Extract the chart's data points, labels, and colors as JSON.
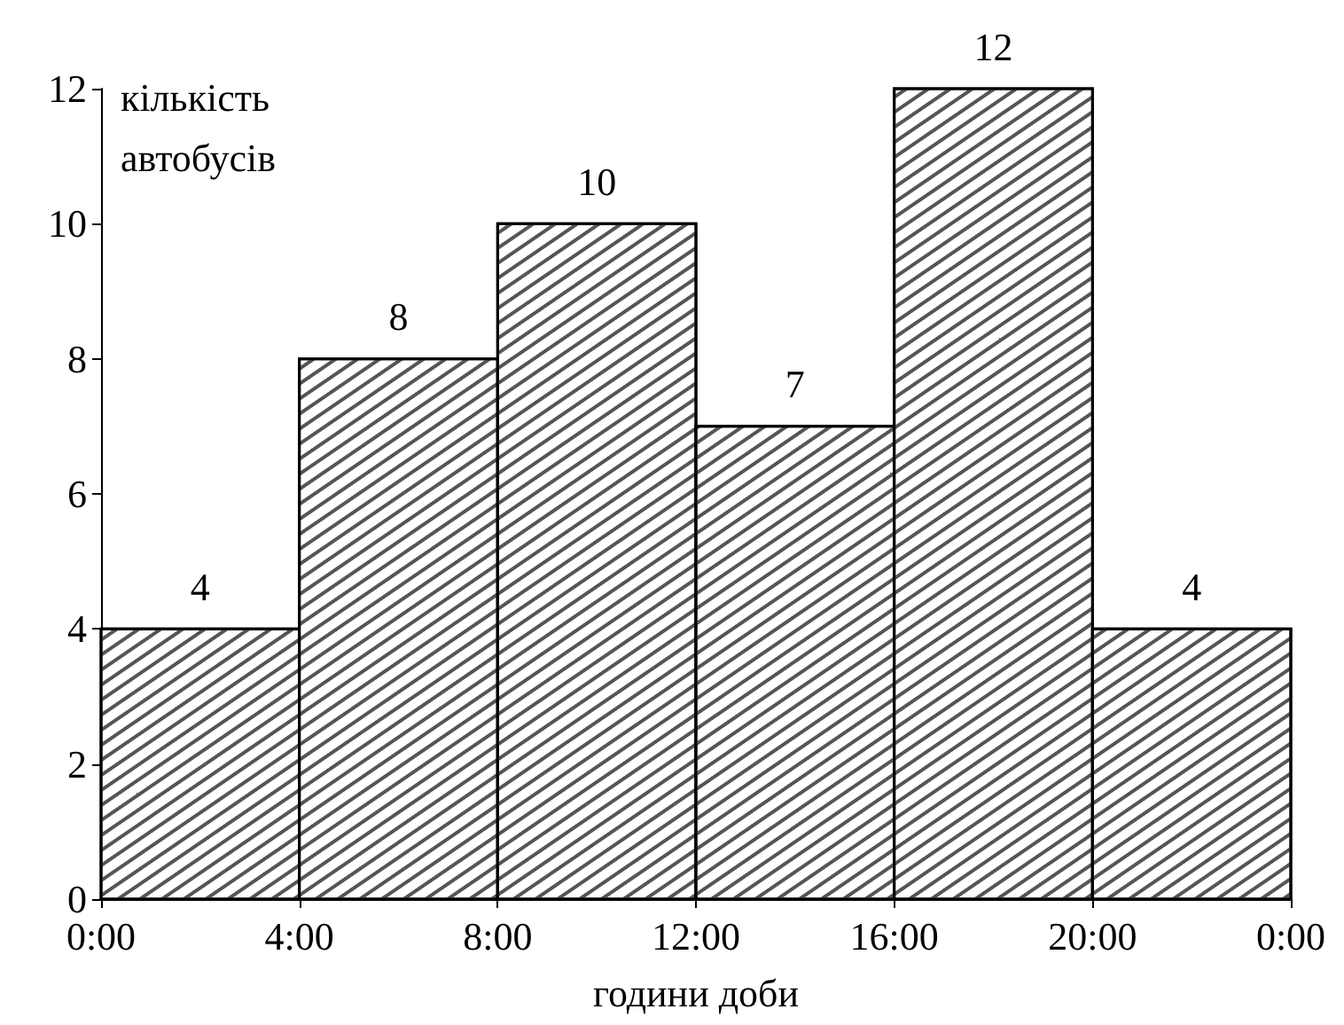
{
  "chart_data": {
    "type": "histogram",
    "xlabel": "години доби",
    "ylabel": "кількість автобусів",
    "bins": [
      0,
      4,
      8,
      12,
      16,
      20,
      24
    ],
    "values": [
      4,
      8,
      10,
      7,
      12,
      4
    ],
    "color": "#ffffff",
    "data_labels": true,
    "xlim": [
      0,
      24
    ],
    "xticks": [
      {
        "value": 0,
        "label": "0:00"
      },
      {
        "value": 4,
        "label": "4:00"
      },
      {
        "value": 8,
        "label": "8:00"
      },
      {
        "value": 12,
        "label": "12:00"
      },
      {
        "value": 16,
        "label": "16:00"
      },
      {
        "value": 20,
        "label": "20:00"
      },
      {
        "value": 24,
        "label": "0:00"
      }
    ],
    "ylim": [
      0,
      12
    ],
    "yticks": [
      0,
      2,
      4,
      6,
      8,
      10,
      12
    ],
    "grid": false
  }
}
